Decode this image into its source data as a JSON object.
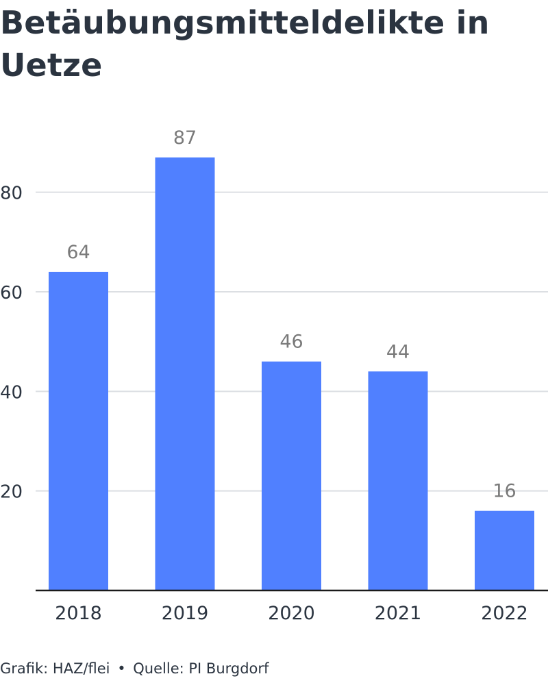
{
  "chart_data": {
    "type": "bar",
    "title": "Betäubungsmitteldelikte in Uetze",
    "categories": [
      "2018",
      "2019",
      "2020",
      "2021",
      "2022"
    ],
    "values": [
      64,
      87,
      46,
      44,
      16
    ],
    "data_labels": [
      "64",
      "87",
      "46",
      "44",
      "16"
    ],
    "ylim": [
      0,
      90
    ],
    "yticks": [
      20,
      40,
      60,
      80
    ],
    "ytick_labels": [
      "20",
      "40",
      "60",
      "80"
    ],
    "xlabel": "",
    "ylabel": "",
    "grid": true,
    "legend": "none",
    "colors": {
      "bar": "#5080ff",
      "grid": "#dcdfe3",
      "axis": "#1a1a1a",
      "tick_text": "#2b3440",
      "value_text": "#7a7a7a"
    }
  },
  "footer": {
    "credit": "Grafik: HAZ/flei",
    "separator": "•",
    "source": "Quelle: PI Burgdorf"
  }
}
